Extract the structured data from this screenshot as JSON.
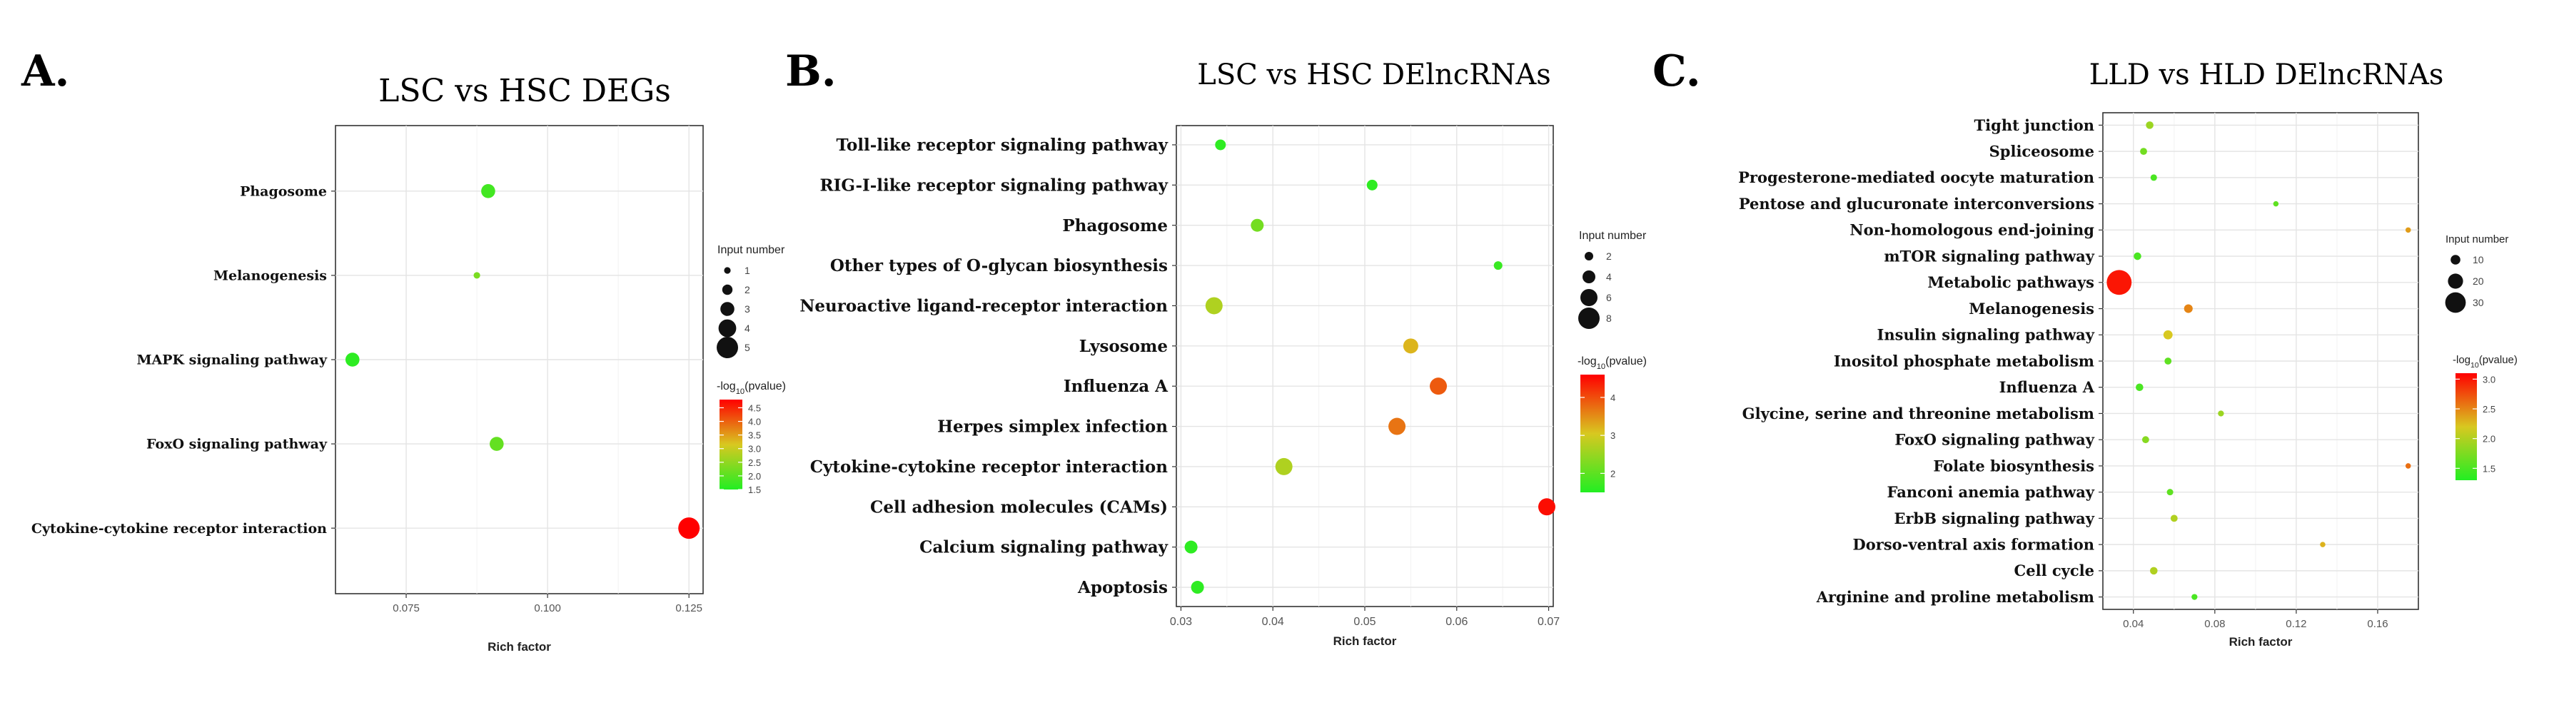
{
  "chart_data": [
    {
      "type": "scatter",
      "panel_label": "A.",
      "title": "LSC vs HSC DEGs",
      "xlabel": "Rich factor",
      "ylabel": "",
      "xlim": [
        0.0625,
        0.1275
      ],
      "xticks": [
        0.075,
        0.1,
        0.125
      ],
      "xtick_labels": [
        "0.075",
        "0.100",
        "0.125"
      ],
      "grid": true,
      "categories": [
        "Phagosome",
        "Melanogenesis",
        "MAPK signaling pathway",
        "FoxO signaling pathway",
        "Cytokine-cytokine receptor interaction"
      ],
      "points": [
        {
          "pathway": "Phagosome",
          "rich_factor": 0.0895,
          "input_number": 3,
          "neg_log10_pvalue": 1.8
        },
        {
          "pathway": "Melanogenesis",
          "rich_factor": 0.0875,
          "input_number": 1,
          "neg_log10_pvalue": 2.3
        },
        {
          "pathway": "MAPK signaling pathway",
          "rich_factor": 0.0655,
          "input_number": 3,
          "neg_log10_pvalue": 1.6
        },
        {
          "pathway": "FoxO signaling pathway",
          "rich_factor": 0.091,
          "input_number": 3,
          "neg_log10_pvalue": 2.1
        },
        {
          "pathway": "Cytokine-cytokine receptor interaction",
          "rich_factor": 0.125,
          "input_number": 5,
          "neg_log10_pvalue": 4.8
        }
      ],
      "size_legend": {
        "title": "Input number",
        "values": [
          1,
          2,
          3,
          4,
          5
        ],
        "labels": [
          "1",
          "2",
          "3",
          "4",
          "5"
        ]
      },
      "color_legend": {
        "title_main": "-log",
        "title_sub": "10",
        "title_tail": "(pvalue)",
        "range": [
          1.5,
          4.8
        ],
        "ticks": [
          4.5,
          4.0,
          3.5,
          3.0,
          2.5,
          2.0,
          1.5
        ],
        "tick_labels": [
          "4.5",
          "4.0",
          "3.5",
          "3.0",
          "2.5",
          "2.0",
          "1.5"
        ],
        "low_color": "#22ee22",
        "mid_color": "#d8c820",
        "high_color": "#ff0000"
      }
    },
    {
      "type": "scatter",
      "panel_label": "B.",
      "title": "LSC vs HSC DElncRNAs",
      "xlabel": "Rich factor",
      "ylabel": "",
      "xlim": [
        0.0295,
        0.0705
      ],
      "xticks": [
        0.03,
        0.04,
        0.05,
        0.06,
        0.07
      ],
      "xtick_labels": [
        "0.03",
        "0.04",
        "0.05",
        "0.06",
        "0.07"
      ],
      "grid": true,
      "categories": [
        "Toll-like receptor signaling pathway",
        "RIG-I-like receptor signaling pathway",
        "Phagosome",
        "Other types of O-glycan biosynthesis",
        "Neuroactive ligand-receptor interaction",
        "Lysosome",
        "Influenza A",
        "Herpes simplex infection",
        "Cytokine-cytokine receptor interaction",
        "Cell adhesion molecules (CAMs)",
        "Calcium signaling pathway",
        "Apoptosis"
      ],
      "points": [
        {
          "pathway": "Toll-like receptor signaling pathway",
          "rich_factor": 0.0343,
          "input_number": 3,
          "neg_log10_pvalue": 1.6
        },
        {
          "pathway": "RIG-I-like receptor signaling pathway",
          "rich_factor": 0.0508,
          "input_number": 3,
          "neg_log10_pvalue": 1.6
        },
        {
          "pathway": "Phagosome",
          "rich_factor": 0.0383,
          "input_number": 4,
          "neg_log10_pvalue": 2.2
        },
        {
          "pathway": "Other types of O-glycan biosynthesis",
          "rich_factor": 0.0645,
          "input_number": 2,
          "neg_log10_pvalue": 1.7
        },
        {
          "pathway": "Neuroactive ligand-receptor interaction",
          "rich_factor": 0.0336,
          "input_number": 6,
          "neg_log10_pvalue": 2.7
        },
        {
          "pathway": "Lysosome",
          "rich_factor": 0.055,
          "input_number": 5,
          "neg_log10_pvalue": 3.2
        },
        {
          "pathway": "Influenza A",
          "rich_factor": 0.058,
          "input_number": 6,
          "neg_log10_pvalue": 3.9
        },
        {
          "pathway": "Herpes simplex infection",
          "rich_factor": 0.0535,
          "input_number": 6,
          "neg_log10_pvalue": 3.7
        },
        {
          "pathway": "Cytokine-cytokine receptor interaction",
          "rich_factor": 0.0412,
          "input_number": 6,
          "neg_log10_pvalue": 2.7
        },
        {
          "pathway": "Cell adhesion molecules (CAMs)",
          "rich_factor": 0.0698,
          "input_number": 6,
          "neg_log10_pvalue": 4.5
        },
        {
          "pathway": "Calcium signaling pathway",
          "rich_factor": 0.0311,
          "input_number": 4,
          "neg_log10_pvalue": 1.6
        },
        {
          "pathway": "Apoptosis",
          "rich_factor": 0.0318,
          "input_number": 4,
          "neg_log10_pvalue": 1.6
        }
      ],
      "size_legend": {
        "title": "Input number",
        "values": [
          2,
          4,
          6,
          8
        ],
        "labels": [
          "2",
          "4",
          "6",
          "8"
        ]
      },
      "color_legend": {
        "title_main": "-log",
        "title_sub": "10",
        "title_tail": "(pvalue)",
        "range": [
          1.5,
          4.6
        ],
        "ticks": [
          4,
          3,
          2
        ],
        "tick_labels": [
          "4",
          "3",
          "2"
        ],
        "low_color": "#22ee22",
        "mid_color": "#d8c820",
        "high_color": "#ff0000"
      }
    },
    {
      "type": "scatter",
      "panel_label": "C.",
      "title": "LLD vs HLD DElncRNAs",
      "xlabel": "Rich factor",
      "ylabel": "",
      "xlim": [
        0.025,
        0.18
      ],
      "xticks": [
        0.04,
        0.08,
        0.12,
        0.16
      ],
      "xtick_labels": [
        "0.04",
        "0.08",
        "0.12",
        "0.16"
      ],
      "grid": true,
      "categories": [
        "Tight junction",
        "Spliceosome",
        "Progesterone-mediated oocyte maturation",
        "Pentose and glucuronate interconversions",
        "Non-homologous end-joining",
        "mTOR signaling pathway",
        "Metabolic pathways",
        "Melanogenesis",
        "Insulin signaling pathway",
        "Inositol phosphate metabolism",
        "Influenza A",
        "Glycine, serine and threonine metabolism",
        "FoxO signaling pathway",
        "Folate biosynthesis",
        "Fanconi anemia pathway",
        "ErbB signaling pathway",
        "Dorso-ventral axis formation",
        "Cell cycle",
        "Arginine and proline metabolism"
      ],
      "points": [
        {
          "pathway": "Tight junction",
          "rich_factor": 0.048,
          "input_number": 6,
          "neg_log10_pvalue": 1.9
        },
        {
          "pathway": "Spliceosome",
          "rich_factor": 0.045,
          "input_number": 5,
          "neg_log10_pvalue": 1.7
        },
        {
          "pathway": "Progesterone-mediated oocyte maturation",
          "rich_factor": 0.05,
          "input_number": 4,
          "neg_log10_pvalue": 1.5
        },
        {
          "pathway": "Pentose and glucuronate interconversions",
          "rich_factor": 0.11,
          "input_number": 2,
          "neg_log10_pvalue": 1.6
        },
        {
          "pathway": "Non-homologous end-joining",
          "rich_factor": 0.175,
          "input_number": 2,
          "neg_log10_pvalue": 2.4
        },
        {
          "pathway": "mTOR signaling pathway",
          "rich_factor": 0.042,
          "input_number": 6,
          "neg_log10_pvalue": 1.5
        },
        {
          "pathway": "Metabolic pathways",
          "rich_factor": 0.033,
          "input_number": 38,
          "neg_log10_pvalue": 3.0
        },
        {
          "pathway": "Melanogenesis",
          "rich_factor": 0.067,
          "input_number": 8,
          "neg_log10_pvalue": 2.5
        },
        {
          "pathway": "Insulin signaling pathway",
          "rich_factor": 0.057,
          "input_number": 9,
          "neg_log10_pvalue": 2.2
        },
        {
          "pathway": "Inositol phosphate metabolism",
          "rich_factor": 0.057,
          "input_number": 5,
          "neg_log10_pvalue": 1.6
        },
        {
          "pathway": "Influenza A",
          "rich_factor": 0.043,
          "input_number": 6,
          "neg_log10_pvalue": 1.5
        },
        {
          "pathway": "Glycine, serine and threonine metabolism",
          "rich_factor": 0.083,
          "input_number": 3,
          "neg_log10_pvalue": 1.9
        },
        {
          "pathway": "FoxO signaling pathway",
          "rich_factor": 0.046,
          "input_number": 5,
          "neg_log10_pvalue": 1.8
        },
        {
          "pathway": "Folate biosynthesis",
          "rich_factor": 0.175,
          "input_number": 2,
          "neg_log10_pvalue": 2.6
        },
        {
          "pathway": "Fanconi anemia pathway",
          "rich_factor": 0.058,
          "input_number": 4,
          "neg_log10_pvalue": 1.6
        },
        {
          "pathway": "ErbB signaling pathway",
          "rich_factor": 0.06,
          "input_number": 5,
          "neg_log10_pvalue": 2.0
        },
        {
          "pathway": "Dorso-ventral axis formation",
          "rich_factor": 0.133,
          "input_number": 2,
          "neg_log10_pvalue": 2.3
        },
        {
          "pathway": "Cell cycle",
          "rich_factor": 0.05,
          "input_number": 6,
          "neg_log10_pvalue": 2.0
        },
        {
          "pathway": "Arginine and proline metabolism",
          "rich_factor": 0.07,
          "input_number": 3,
          "neg_log10_pvalue": 1.5
        }
      ],
      "size_legend": {
        "title": "Input number",
        "values": [
          10,
          20,
          30
        ],
        "labels": [
          "10",
          "20",
          "30"
        ]
      },
      "color_legend": {
        "title_main": "-log",
        "title_sub": "10",
        "title_tail": "(pvalue)",
        "range": [
          1.3,
          3.1
        ],
        "ticks": [
          3.0,
          2.5,
          2.0,
          1.5
        ],
        "tick_labels": [
          "3.0",
          "2.5",
          "2.0",
          "1.5"
        ],
        "low_color": "#22ee22",
        "mid_color": "#d8c820",
        "high_color": "#ff0000"
      }
    }
  ]
}
